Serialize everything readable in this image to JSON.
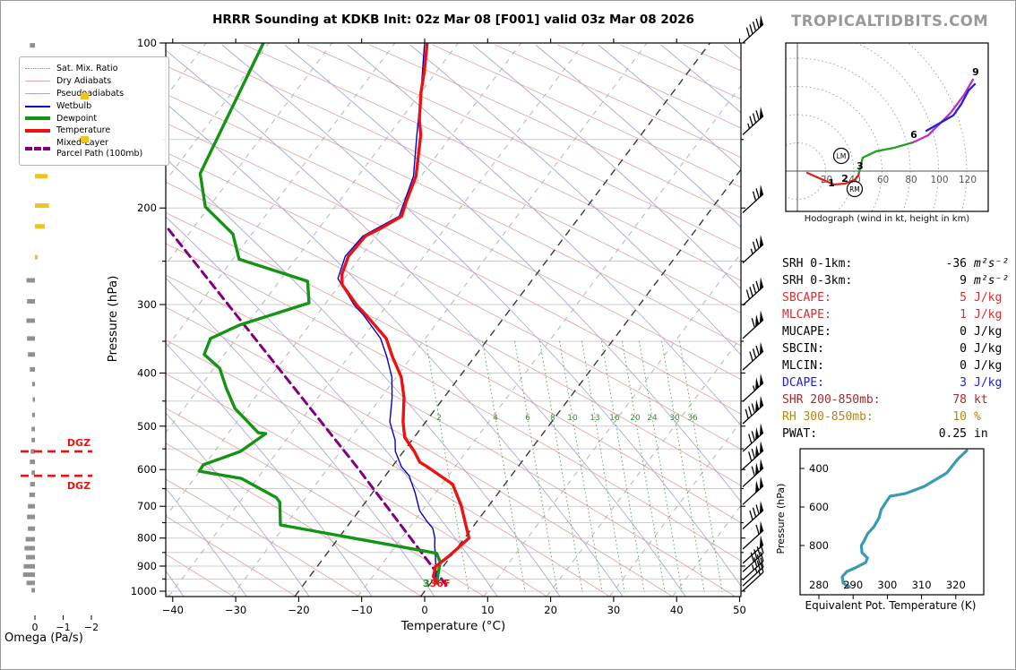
{
  "header": {
    "title": "HRRR Sounding at KDKB Init: 02z Mar 08 [F001] valid 03z Mar 08 2026",
    "watermark": "TROPICALTIDBITS.COM"
  },
  "colors": {
    "temperature": "#ee1111",
    "dewpoint": "#149414",
    "wetbulb": "#0000cc",
    "parcel": "#800080",
    "dry_adiabat": "#e4a7a7",
    "pseudoadiabat": "#a9a9d9",
    "mixing_ratio": "#5aa85a",
    "isotherm": "#b5b5b5",
    "isotherm_dark": "#3a3a3a",
    "gridline": "#cdcdcd",
    "omega_up": "#f0c420",
    "omega_down": "#909090",
    "dgz": "#ee1111",
    "theta_e": "#3a9ab2",
    "hodo_0_3": "#dd2020",
    "hodo_3_6": "#22a022",
    "hodo_6_9": "#c030c0",
    "hodo_9_12": "#2020dd",
    "watermark": "#999999"
  },
  "legend": {
    "items": [
      {
        "label": "Sat. Mix. Ratio",
        "swatch": "satmix"
      },
      {
        "label": "Dry Adiabats",
        "swatch": "dry"
      },
      {
        "label": "Pseudoadiabats",
        "swatch": "pseudo"
      },
      {
        "label": "Wetbulb",
        "swatch": "wetbulb"
      },
      {
        "label": "Dewpoint",
        "swatch": "dewpoint"
      },
      {
        "label": "Temperature",
        "swatch": "temperature"
      },
      {
        "label": "Mixed-Layer\nParcel Path (100mb)",
        "swatch": "parcel"
      }
    ]
  },
  "chart_data": {
    "type": "skewt_sounding",
    "skewt": {
      "xlabel": "Temperature (°C)",
      "ylabel": "Pressure (hPa)",
      "temp_ticks": [
        -40,
        -30,
        -20,
        -10,
        0,
        10,
        20,
        30,
        40,
        50
      ],
      "pressure_ticks": [
        100,
        200,
        300,
        400,
        500,
        600,
        700,
        800,
        900,
        1000
      ],
      "xlim": [
        -41,
        50.5
      ],
      "plim": [
        100,
        1023
      ],
      "mixing_ratio_values": [
        2,
        4,
        6,
        8,
        10,
        13,
        16,
        20,
        24,
        30,
        36
      ],
      "mixing_ratio_x": [
        489,
        552,
        588,
        616,
        638,
        663,
        685,
        708,
        727,
        752,
        772
      ],
      "surface_dewpoint_label": "3",
      "surface_temp_label": "36F",
      "series": {
        "temperature": [
          [
            100,
            -64.9
          ],
          [
            113,
            -61.9
          ],
          [
            123,
            -60.0
          ],
          [
            138,
            -57.0
          ],
          [
            147,
            -55.0
          ],
          [
            175,
            -50.8
          ],
          [
            195,
            -49.3
          ],
          [
            207,
            -48.3
          ],
          [
            218,
            -50.2
          ],
          [
            225,
            -51.7
          ],
          [
            245,
            -52.0
          ],
          [
            264,
            -50.9
          ],
          [
            276,
            -49.6
          ],
          [
            301,
            -44.8
          ],
          [
            313,
            -42.3
          ],
          [
            346,
            -36.2
          ],
          [
            373,
            -33.1
          ],
          [
            407,
            -29.2
          ],
          [
            444,
            -26.3
          ],
          [
            491,
            -23.6
          ],
          [
            524,
            -21.5
          ],
          [
            556,
            -18.3
          ],
          [
            582,
            -16.1
          ],
          [
            593,
            -14.4
          ],
          [
            638,
            -8.3
          ],
          [
            698,
            -4.4
          ],
          [
            800,
            0.7
          ],
          [
            862,
            -0.3
          ],
          [
            901,
            -1.2
          ],
          [
            939,
            -0.4
          ],
          [
            967,
            1.0
          ]
        ],
        "dewpoint": [
          [
            100,
            -90.9
          ],
          [
            173,
            -85.4
          ],
          [
            199,
            -80.6
          ],
          [
            223,
            -73.0
          ],
          [
            248,
            -69.0
          ],
          [
            272,
            -55.5
          ],
          [
            298,
            -52.7
          ],
          [
            327,
            -61.1
          ],
          [
            346,
            -64.1
          ],
          [
            370,
            -63.2
          ],
          [
            392,
            -59.1
          ],
          [
            426,
            -55.7
          ],
          [
            464,
            -51.9
          ],
          [
            514,
            -45.3
          ],
          [
            516,
            -44.0
          ],
          [
            556,
            -45.9
          ],
          [
            588,
            -50.2
          ],
          [
            604,
            -50.1
          ],
          [
            609,
            -48.1
          ],
          [
            623,
            -42.5
          ],
          [
            675,
            -34.7
          ],
          [
            688,
            -33.6
          ],
          [
            757,
            -30.8
          ],
          [
            853,
            -2.6
          ],
          [
            885,
            -1.0
          ],
          [
            923,
            -0.1
          ],
          [
            960,
            0.8
          ]
        ],
        "wetbulb": [
          [
            100,
            -65.3
          ],
          [
            123,
            -60.0
          ],
          [
            147,
            -55.6
          ],
          [
            175,
            -51.2
          ],
          [
            207,
            -48.7
          ],
          [
            225,
            -52.1
          ],
          [
            245,
            -52.5
          ],
          [
            269,
            -51.0
          ],
          [
            301,
            -45.2
          ],
          [
            313,
            -42.7
          ],
          [
            346,
            -37.1
          ],
          [
            373,
            -34.0
          ],
          [
            407,
            -30.7
          ],
          [
            444,
            -28.2
          ],
          [
            491,
            -25.7
          ],
          [
            530,
            -22.7
          ],
          [
            556,
            -21.3
          ],
          [
            593,
            -18.5
          ],
          [
            616,
            -16.2
          ],
          [
            662,
            -13.2
          ],
          [
            713,
            -10.4
          ],
          [
            745,
            -8.0
          ],
          [
            768,
            -6.2
          ],
          [
            800,
            -4.7
          ],
          [
            827,
            -3.8
          ],
          [
            862,
            -2.5
          ],
          [
            901,
            -1.2
          ],
          [
            960,
            0.6
          ]
        ],
        "parcel": [
          [
            975,
            2.7
          ],
          [
            593,
            -25.6
          ],
          [
            374,
            -52.5
          ],
          [
            216,
            -84.5
          ]
        ]
      }
    },
    "hodograph": {
      "caption": "Hodograph (wind in kt, height in km)",
      "ring_interval_kt": 20,
      "ring_labels": [
        20,
        40,
        60,
        80,
        100,
        120
      ],
      "segments": {
        "h0_3km": [
          [
            7,
            -1.3
          ],
          [
            18.4,
            -6.3
          ],
          [
            26,
            -9.5
          ],
          [
            33.7,
            -8.9
          ],
          [
            40.6,
            -6.3
          ],
          [
            43.2,
            -3.2
          ],
          [
            43.8,
            -0.6
          ]
        ],
        "h3_6km": [
          [
            43.8,
            -0.6
          ],
          [
            46.3,
            9.5
          ],
          [
            55.9,
            14.0
          ],
          [
            68.6,
            16.5
          ],
          [
            81.9,
            20.3
          ]
        ],
        "h6_9km": [
          [
            81.9,
            20.3
          ],
          [
            92.7,
            25.4
          ],
          [
            108.6,
            41.3
          ],
          [
            118.1,
            54.0
          ],
          [
            124.4,
            64.8
          ]
        ],
        "h9_12km": [
          [
            91.4,
            28.6
          ],
          [
            110.5,
            39.4
          ],
          [
            116.2,
            47.6
          ],
          [
            121.3,
            57.1
          ],
          [
            125.7,
            61.6
          ]
        ]
      },
      "height_labels": [
        {
          "t": "1",
          "u": 24.1,
          "v": -10.8
        },
        {
          "t": "2",
          "u": 33.7,
          "v": -7.6
        },
        {
          "t": "3",
          "u": 44.4,
          "v": 1.3
        },
        {
          "t": "6",
          "u": 82.5,
          "v": 23.5
        },
        {
          "t": "9",
          "u": 126.3,
          "v": 67.9
        }
      ],
      "storm_markers": [
        {
          "t": "LM",
          "u": 31.1,
          "v": 10.8
        },
        {
          "t": "RM",
          "u": 40.6,
          "v": -12.7
        }
      ]
    },
    "indices": [
      {
        "label": "SRH 0-1km:",
        "value": "-36",
        "unit": "m²s⁻²",
        "color": "#000000",
        "italic_unit": true
      },
      {
        "label": "SRH 0-3km:",
        "value": "9",
        "unit": "m²s⁻²",
        "color": "#000000",
        "italic_unit": true
      },
      {
        "label": "SBCAPE:",
        "value": "5",
        "unit": "J/kg",
        "color": "#d43030"
      },
      {
        "label": "MLCAPE:",
        "value": "1",
        "unit": "J/kg",
        "color": "#d43030"
      },
      {
        "label": "MUCAPE:",
        "value": "0",
        "unit": "J/kg",
        "color": "#000000"
      },
      {
        "label": "SBCIN:",
        "value": "0",
        "unit": "J/kg",
        "color": "#000000"
      },
      {
        "label": "MLCIN:",
        "value": "0",
        "unit": "J/kg",
        "color": "#000000"
      },
      {
        "label": "DCAPE:",
        "value": "3",
        "unit": "J/kg",
        "color": "#2222cc"
      },
      {
        "label": "SHR 200-850mb:",
        "value": "78",
        "unit": "kt",
        "color": "#a52a2a"
      },
      {
        "label": "RH 300-850mb:",
        "value": "10",
        "unit": "%",
        "color": "#b8860b"
      },
      {
        "label": "PWAT:",
        "value": "0.25",
        "unit": "in",
        "color": "#000000"
      }
    ],
    "theta_e": {
      "xlabel": "Equivalent Pot. Temperature (K)",
      "ylabel": "Pressure (hPa)",
      "x_ticks": [
        280,
        290,
        300,
        310,
        320
      ],
      "p_ticks": [
        400,
        600,
        800
      ],
      "curve": [
        [
          307,
          323.2
        ],
        [
          353,
          320.5
        ],
        [
          423,
          317.4
        ],
        [
          493,
          310.8
        ],
        [
          530,
          305.3
        ],
        [
          544,
          300.8
        ],
        [
          577,
          299.5
        ],
        [
          614,
          298.2
        ],
        [
          656,
          297.6
        ],
        [
          702,
          296.1
        ],
        [
          740,
          294.2
        ],
        [
          777,
          293.2
        ],
        [
          800,
          292.4
        ],
        [
          837,
          292.6
        ],
        [
          865,
          294.2
        ],
        [
          888,
          293.7
        ],
        [
          912,
          291.1
        ],
        [
          935,
          288.2
        ],
        [
          963,
          286.8
        ],
        [
          995,
          287.1
        ],
        [
          1009,
          288.2
        ],
        [
          1014,
          288.9
        ]
      ]
    },
    "omega": {
      "xlabel": "Omega (Pa/s)",
      "ticks": [
        0,
        -1,
        -2
      ],
      "dgz_label": "DGZ",
      "dgz_levels": [
        {
          "p": 556,
          "label_above": true
        },
        {
          "p": 616,
          "label_above": false
        }
      ],
      "bars": [
        [
          101,
          0.18
        ],
        [
          125,
          -0.3
        ],
        [
          150,
          -0.48
        ],
        [
          175,
          -0.45
        ],
        [
          198,
          -0.5
        ],
        [
          216,
          -0.35
        ],
        [
          246,
          -0.1
        ],
        [
          271,
          0.3
        ],
        [
          296,
          0.28
        ],
        [
          321,
          0.3
        ],
        [
          346,
          0.28
        ],
        [
          370,
          0.25
        ],
        [
          394,
          0.18
        ],
        [
          419,
          0.1
        ],
        [
          447,
          0.08
        ],
        [
          477,
          0.1
        ],
        [
          506,
          0.12
        ],
        [
          530,
          0.12
        ],
        [
          556,
          0.15
        ],
        [
          581,
          0.18
        ],
        [
          608,
          0.12
        ],
        [
          638,
          0.17
        ],
        [
          667,
          0.2
        ],
        [
          700,
          0.25
        ],
        [
          732,
          0.28
        ],
        [
          769,
          0.25
        ],
        [
          804,
          0.33
        ],
        [
          835,
          0.37
        ],
        [
          867,
          0.32
        ],
        [
          901,
          0.4
        ],
        [
          933,
          0.42
        ],
        [
          966,
          0.3
        ],
        [
          996,
          0.12
        ]
      ],
      "updraft_marks": [
        [
          125,
          -1.63,
          -1.9
        ],
        [
          150,
          -1.63,
          -1.9
        ]
      ]
    },
    "wind_barbs": [
      [
        100,
        1,
        4,
        0
      ],
      [
        147,
        1,
        3,
        1
      ],
      [
        204,
        1,
        2,
        0
      ],
      [
        252,
        1,
        2,
        1
      ],
      [
        301,
        1,
        4,
        0
      ],
      [
        346,
        2,
        1,
        0
      ],
      [
        395,
        1,
        3,
        0
      ],
      [
        451,
        2,
        0,
        1
      ],
      [
        495,
        2,
        3,
        0
      ],
      [
        556,
        2,
        2,
        0
      ],
      [
        599,
        2,
        2,
        0
      ],
      [
        645,
        2,
        1,
        0
      ],
      [
        695,
        2,
        0,
        0
      ],
      [
        770,
        1,
        3,
        0
      ],
      [
        838,
        1,
        1,
        0
      ],
      [
        890,
        1,
        0,
        0
      ],
      [
        922,
        0,
        4,
        0
      ],
      [
        954,
        0,
        3,
        1
      ],
      [
        978,
        0,
        2,
        1
      ],
      [
        999,
        0,
        1,
        1
      ]
    ]
  }
}
